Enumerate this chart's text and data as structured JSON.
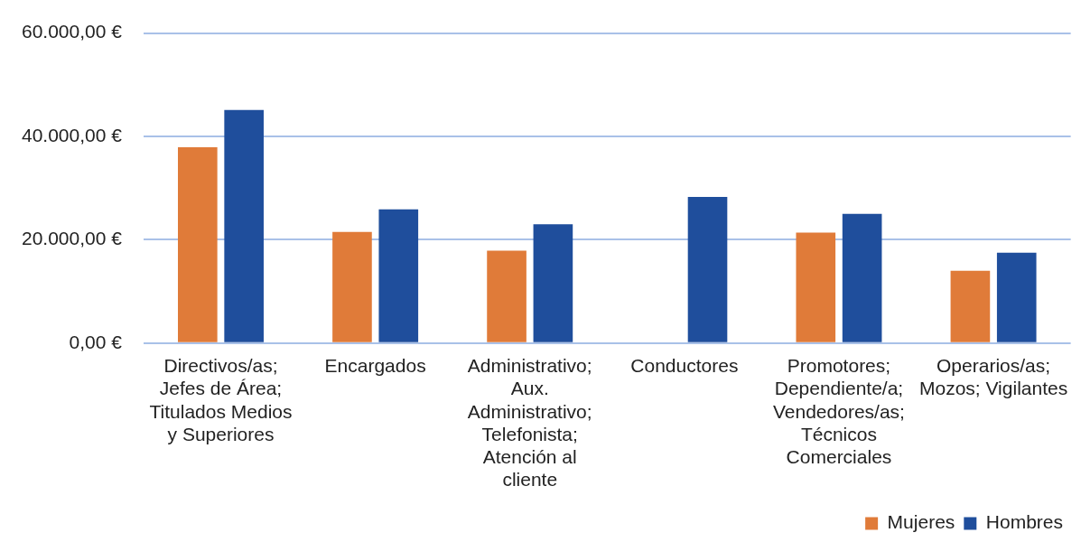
{
  "chart_data": {
    "type": "bar",
    "categories": [
      "Directivos/as; Jefes de Área; Titulados Medios y Superiores",
      "Encargados",
      "Administrativo; Aux. Administrativo; Telefonista; Atención al cliente",
      "Conductores",
      "Promotores; Dependiente/a; Vendedores/as; Técnicos Comerciales",
      "Operarios/as; Mozos; Vigilantes"
    ],
    "series": [
      {
        "name": "Mujeres",
        "color": "#e07b39",
        "values": [
          37900,
          21500,
          17900,
          null,
          21400,
          14000
        ]
      },
      {
        "name": "Hombres",
        "color": "#1f4e9c",
        "values": [
          45100,
          25900,
          23000,
          28300,
          25000,
          17500
        ]
      }
    ],
    "ylim": [
      0,
      60000
    ],
    "yticks": [
      {
        "value": 0,
        "label": "0,00 €"
      },
      {
        "value": 20000,
        "label": "20.000,00 €"
      },
      {
        "value": 40000,
        "label": "40.000,00 €"
      },
      {
        "value": 60000,
        "label": "60.000,00 €"
      }
    ],
    "grid": "y",
    "legend": "bottom right"
  }
}
